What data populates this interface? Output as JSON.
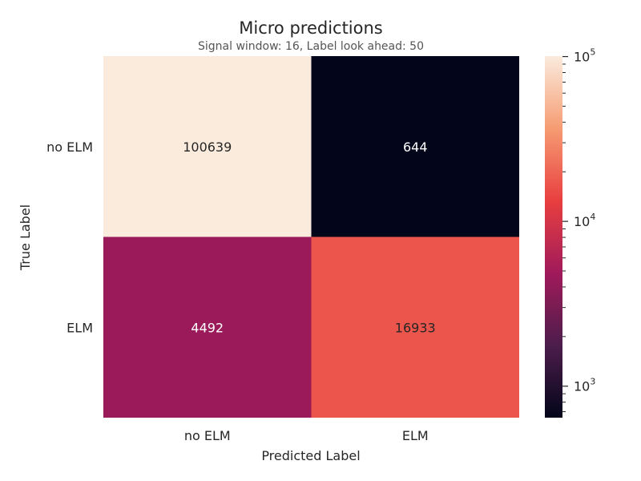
{
  "chart_data": {
    "type": "heatmap",
    "title": "Micro predictions",
    "subtitle": "Signal window: 16, Label look ahead: 50",
    "xlabel": "Predicted Label",
    "ylabel": "True Label",
    "x_categories": [
      "no ELM",
      "ELM"
    ],
    "y_categories": [
      "no ELM",
      "ELM"
    ],
    "values": [
      [
        100639,
        644
      ],
      [
        4492,
        16933
      ]
    ],
    "colorbar": {
      "scale": "log",
      "range": [
        644,
        100639
      ],
      "ticks": [
        {
          "base": "10",
          "exp": "3",
          "value": 1000
        },
        {
          "base": "10",
          "exp": "4",
          "value": 10000
        },
        {
          "base": "10",
          "exp": "5",
          "value": 100000
        }
      ]
    },
    "colormap": [
      "#03051a",
      "#4c1d4b",
      "#a11a5b",
      "#e83f3f",
      "#f69c73",
      "#faebdd"
    ]
  }
}
